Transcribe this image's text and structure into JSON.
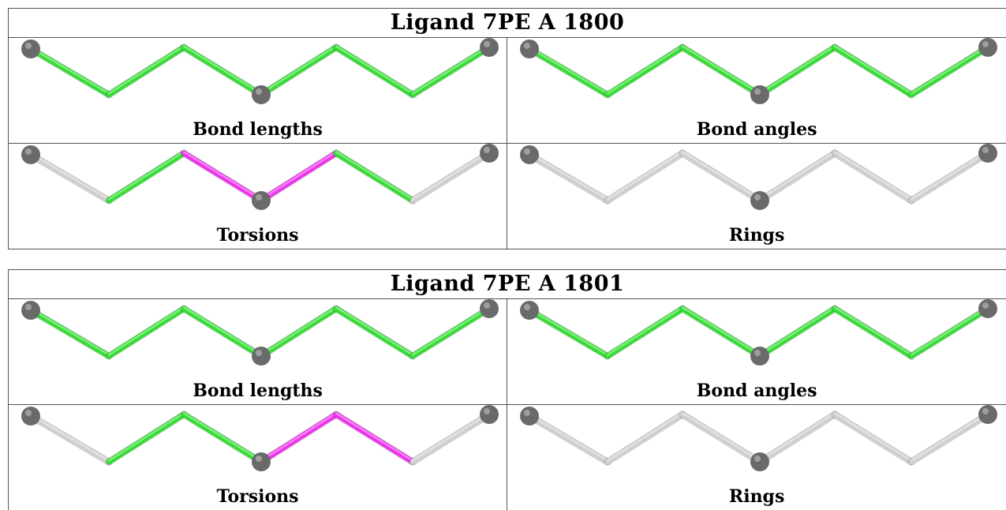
{
  "colors": {
    "ok": "#33dd33",
    "outlier": "#ee33ee",
    "none": "#cfcfcf",
    "atom": "#6a6a6a"
  },
  "ligands": [
    {
      "title": "Ligand 7PE A 1800",
      "panels": [
        {
          "caption": "Bond lengths",
          "bonds": [
            "ok",
            "ok",
            "ok",
            "ok",
            "ok",
            "ok"
          ]
        },
        {
          "caption": "Bond angles",
          "bonds": [
            "ok",
            "ok",
            "ok",
            "ok",
            "ok",
            "ok"
          ]
        },
        {
          "caption": "Torsions",
          "bonds": [
            "none",
            "ok",
            "outlier",
            "outlier",
            "ok",
            "none"
          ]
        },
        {
          "caption": "Rings",
          "bonds": [
            "none",
            "none",
            "none",
            "none",
            "none",
            "none"
          ]
        }
      ]
    },
    {
      "title": "Ligand 7PE A 1801",
      "panels": [
        {
          "caption": "Bond lengths",
          "bonds": [
            "ok",
            "ok",
            "ok",
            "ok",
            "ok",
            "ok"
          ]
        },
        {
          "caption": "Bond angles",
          "bonds": [
            "ok",
            "ok",
            "ok",
            "ok",
            "ok",
            "ok"
          ]
        },
        {
          "caption": "Torsions",
          "bonds": [
            "none",
            "ok",
            "ok",
            "outlier",
            "outlier",
            "none"
          ]
        },
        {
          "caption": "Rings",
          "bonds": [
            "none",
            "none",
            "none",
            "none",
            "none",
            "none"
          ]
        }
      ]
    }
  ]
}
